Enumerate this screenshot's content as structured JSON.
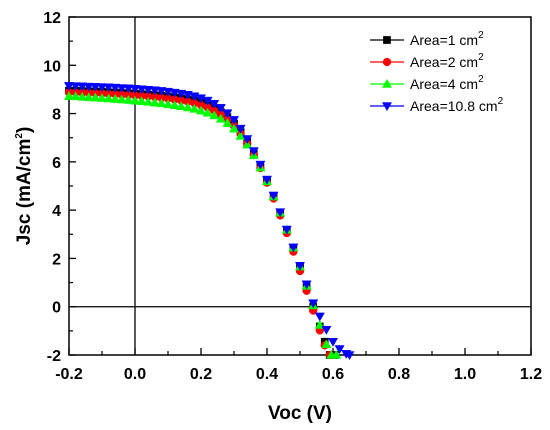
{
  "chart_data": {
    "type": "scatter",
    "xlabel": "Voc (V)",
    "ylabel": {
      "main": "Jsc (mA/cm",
      "sup": "2",
      "close": ")"
    },
    "xlim": [
      -0.2,
      1.2
    ],
    "ylim": [
      -2,
      12
    ],
    "x_ticks": [
      -0.2,
      0.0,
      0.2,
      0.4,
      0.6,
      0.8,
      1.0,
      1.2
    ],
    "x_tick_labels": [
      "-0.2",
      "0.0",
      "0.2",
      "0.4",
      "0.6",
      "0.8",
      "1.0",
      "1.2"
    ],
    "y_ticks": [
      -2,
      0,
      2,
      4,
      6,
      8,
      10,
      12
    ],
    "y_tick_labels": [
      "-2",
      "0",
      "2",
      "4",
      "6",
      "8",
      "10",
      "12"
    ],
    "reference_lines": {
      "x": 0,
      "y": 0
    },
    "grid": false,
    "legend_position": "top-right",
    "series": [
      {
        "name": {
          "main": "Area=1 cm",
          "sup": "2"
        },
        "color": "#000000",
        "marker": "square",
        "x": [
          -0.2,
          -0.18,
          -0.16,
          -0.14,
          -0.12,
          -0.1,
          -0.08,
          -0.06,
          -0.04,
          -0.02,
          0,
          0.02,
          0.04,
          0.06,
          0.08,
          0.1,
          0.12,
          0.14,
          0.16,
          0.18,
          0.2,
          0.22,
          0.24,
          0.26,
          0.28,
          0.3,
          0.32,
          0.34,
          0.36,
          0.38,
          0.4,
          0.42,
          0.44,
          0.46,
          0.48,
          0.5,
          0.52,
          0.54,
          0.56,
          0.575,
          0.59,
          0.605
        ],
        "y": [
          8.95,
          8.94,
          8.93,
          8.92,
          8.91,
          8.9,
          8.88,
          8.87,
          8.85,
          8.84,
          8.82,
          8.8,
          8.78,
          8.76,
          8.73,
          8.7,
          8.67,
          8.63,
          8.58,
          8.53,
          8.45,
          8.35,
          8.22,
          8.06,
          7.85,
          7.58,
          7.23,
          6.82,
          6.33,
          5.79,
          5.19,
          4.55,
          3.87,
          3.15,
          2.4,
          1.62,
          0.82,
          0.0,
          -0.82,
          -1.45,
          -2.0,
          -2.0
        ]
      },
      {
        "name": {
          "main": "Area=2 cm",
          "sup": "2"
        },
        "color": "#ff0000",
        "marker": "circle",
        "x": [
          -0.2,
          -0.18,
          -0.16,
          -0.14,
          -0.12,
          -0.1,
          -0.08,
          -0.06,
          -0.04,
          -0.02,
          0,
          0.02,
          0.04,
          0.06,
          0.08,
          0.1,
          0.12,
          0.14,
          0.16,
          0.18,
          0.2,
          0.22,
          0.24,
          0.26,
          0.28,
          0.3,
          0.32,
          0.34,
          0.36,
          0.38,
          0.4,
          0.42,
          0.44,
          0.46,
          0.48,
          0.5,
          0.52,
          0.54,
          0.56,
          0.575,
          0.59
        ],
        "y": [
          8.88,
          8.87,
          8.86,
          8.85,
          8.84,
          8.83,
          8.81,
          8.8,
          8.78,
          8.77,
          8.75,
          8.73,
          8.71,
          8.68,
          8.65,
          8.62,
          8.58,
          8.54,
          8.49,
          8.43,
          8.35,
          8.25,
          8.12,
          7.96,
          7.76,
          7.5,
          7.16,
          6.76,
          6.28,
          5.74,
          5.14,
          4.48,
          3.78,
          3.05,
          2.28,
          1.48,
          0.66,
          -0.16,
          -0.98,
          -1.6,
          -2.0
        ]
      },
      {
        "name": {
          "main": "Area=4 cm",
          "sup": "2"
        },
        "color": "#00ff00",
        "marker": "triangle-up",
        "x": [
          -0.2,
          -0.18,
          -0.16,
          -0.14,
          -0.12,
          -0.1,
          -0.08,
          -0.06,
          -0.04,
          -0.02,
          0,
          0.02,
          0.04,
          0.06,
          0.08,
          0.1,
          0.12,
          0.14,
          0.16,
          0.18,
          0.2,
          0.22,
          0.24,
          0.26,
          0.28,
          0.3,
          0.32,
          0.34,
          0.36,
          0.38,
          0.4,
          0.42,
          0.44,
          0.46,
          0.48,
          0.5,
          0.52,
          0.54,
          0.56,
          0.58,
          0.595,
          0.61
        ],
        "y": [
          8.72,
          8.71,
          8.69,
          8.67,
          8.66,
          8.64,
          8.62,
          8.6,
          8.58,
          8.56,
          8.53,
          8.51,
          8.48,
          8.45,
          8.42,
          8.38,
          8.34,
          8.3,
          8.25,
          8.19,
          8.12,
          8.03,
          7.92,
          7.78,
          7.6,
          7.37,
          7.07,
          6.71,
          6.27,
          5.76,
          5.19,
          4.56,
          3.89,
          3.18,
          2.44,
          1.66,
          0.86,
          0.05,
          -0.76,
          -1.56,
          -2.0,
          -2.0
        ]
      },
      {
        "name": {
          "main": "Area=10.8 cm",
          "sup": "2"
        },
        "color": "#0000ff",
        "marker": "triangle-down",
        "x": [
          -0.2,
          -0.18,
          -0.16,
          -0.14,
          -0.12,
          -0.1,
          -0.08,
          -0.06,
          -0.04,
          -0.02,
          0,
          0.02,
          0.04,
          0.06,
          0.08,
          0.1,
          0.12,
          0.14,
          0.16,
          0.18,
          0.2,
          0.22,
          0.24,
          0.26,
          0.28,
          0.3,
          0.32,
          0.34,
          0.36,
          0.38,
          0.4,
          0.42,
          0.44,
          0.46,
          0.48,
          0.5,
          0.52,
          0.54,
          0.56,
          0.58,
          0.6,
          0.62,
          0.64,
          0.65
        ],
        "y": [
          9.15,
          9.14,
          9.13,
          9.12,
          9.11,
          9.1,
          9.09,
          9.08,
          9.06,
          9.05,
          9.03,
          9.01,
          8.99,
          8.97,
          8.94,
          8.91,
          8.87,
          8.83,
          8.78,
          8.72,
          8.64,
          8.54,
          8.41,
          8.24,
          8.02,
          7.74,
          7.38,
          6.95,
          6.45,
          5.89,
          5.27,
          4.61,
          3.92,
          3.2,
          2.46,
          1.7,
          0.93,
          0.15,
          -0.4,
          -0.95,
          -1.45,
          -1.75,
          -1.95,
          -2.0
        ]
      }
    ]
  }
}
